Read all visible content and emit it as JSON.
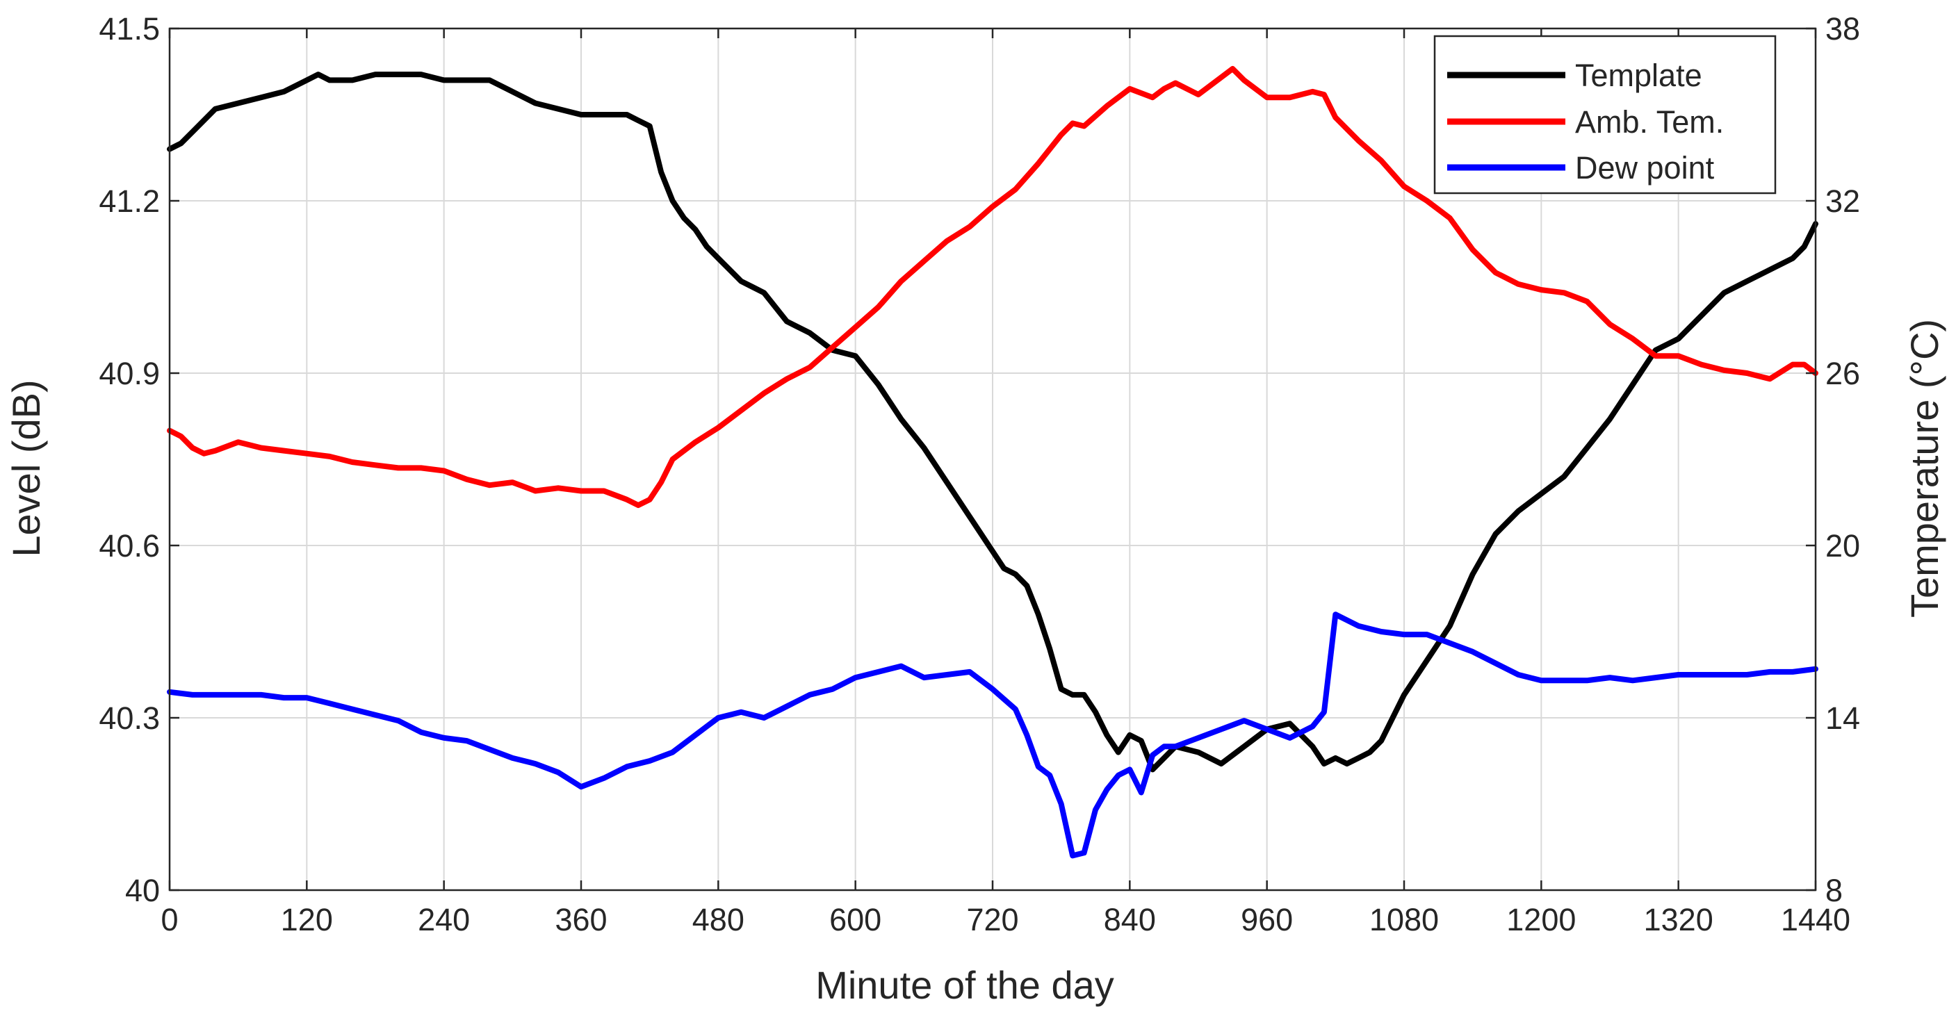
{
  "chart_data": {
    "type": "line",
    "title": "",
    "xlabel": "Minute of the day",
    "ylabel_left": "Level (dB)",
    "ylabel_right": "Temperature (°C)",
    "xlim": [
      0,
      1440
    ],
    "ylim_left": [
      40,
      41.5
    ],
    "ylim_right": [
      8,
      38
    ],
    "x_ticks": [
      0,
      120,
      240,
      360,
      480,
      600,
      720,
      840,
      960,
      1080,
      1200,
      1320,
      1440
    ],
    "x_tick_labels": [
      "0",
      "120",
      "240",
      "360",
      "480",
      "600",
      "720",
      "840",
      "960",
      "1080",
      "1200",
      "1320",
      "1440"
    ],
    "y_left_ticks": [
      40,
      40.3,
      40.6,
      40.9,
      41.2,
      41.5
    ],
    "y_left_tick_labels": [
      "40",
      "40.3",
      "40.6",
      "40.9",
      "41.2",
      "41.5"
    ],
    "y_right_ticks": [
      8,
      14,
      20,
      26,
      32,
      38
    ],
    "y_right_tick_labels": [
      "8",
      "14",
      "20",
      "26",
      "32",
      "38"
    ],
    "grid": true,
    "legend_position": "top-right",
    "series": [
      {
        "name": "Template",
        "axis": "left",
        "color": "#000000",
        "x": [
          0,
          10,
          20,
          30,
          40,
          60,
          80,
          100,
          120,
          130,
          140,
          160,
          180,
          200,
          220,
          240,
          260,
          280,
          300,
          320,
          340,
          360,
          380,
          400,
          410,
          420,
          430,
          440,
          450,
          460,
          470,
          480,
          490,
          500,
          510,
          520,
          540,
          560,
          580,
          600,
          620,
          640,
          660,
          680,
          700,
          720,
          730,
          740,
          750,
          760,
          770,
          780,
          790,
          800,
          810,
          820,
          830,
          840,
          850,
          860,
          880,
          900,
          920,
          940,
          960,
          980,
          1000,
          1010,
          1020,
          1030,
          1040,
          1050,
          1060,
          1080,
          1100,
          1120,
          1140,
          1160,
          1180,
          1200,
          1220,
          1240,
          1260,
          1280,
          1300,
          1320,
          1340,
          1360,
          1380,
          1400,
          1420,
          1430,
          1440
        ],
        "y": [
          41.29,
          41.3,
          41.32,
          41.34,
          41.36,
          41.37,
          41.38,
          41.39,
          41.41,
          41.42,
          41.41,
          41.41,
          41.42,
          41.42,
          41.42,
          41.41,
          41.41,
          41.41,
          41.39,
          41.37,
          41.36,
          41.35,
          41.35,
          41.35,
          41.34,
          41.33,
          41.25,
          41.2,
          41.17,
          41.15,
          41.12,
          41.1,
          41.08,
          41.06,
          41.05,
          41.04,
          40.99,
          40.97,
          40.94,
          40.93,
          40.88,
          40.82,
          40.77,
          40.71,
          40.65,
          40.59,
          40.56,
          40.55,
          40.53,
          40.48,
          40.42,
          40.35,
          40.34,
          40.34,
          40.31,
          40.27,
          40.24,
          40.27,
          40.26,
          40.21,
          40.25,
          40.24,
          40.22,
          40.25,
          40.28,
          40.29,
          40.25,
          40.22,
          40.23,
          40.22,
          40.23,
          40.24,
          40.26,
          40.34,
          40.4,
          40.46,
          40.55,
          40.62,
          40.66,
          40.69,
          40.72,
          40.77,
          40.82,
          40.88,
          40.94,
          40.96,
          41.0,
          41.04,
          41.06,
          41.08,
          41.1,
          41.12,
          41.16
        ]
      },
      {
        "name": "Amb. Tem.",
        "axis": "right",
        "color": "#ff0000",
        "x": [
          0,
          10,
          20,
          30,
          40,
          60,
          80,
          100,
          120,
          140,
          160,
          180,
          200,
          220,
          240,
          260,
          280,
          300,
          320,
          340,
          360,
          380,
          400,
          410,
          420,
          430,
          440,
          460,
          480,
          500,
          520,
          540,
          560,
          580,
          600,
          620,
          640,
          660,
          680,
          700,
          720,
          740,
          760,
          780,
          790,
          800,
          820,
          840,
          860,
          870,
          880,
          900,
          920,
          930,
          940,
          960,
          980,
          1000,
          1010,
          1020,
          1040,
          1060,
          1080,
          1100,
          1120,
          1140,
          1160,
          1180,
          1200,
          1220,
          1240,
          1260,
          1280,
          1300,
          1320,
          1340,
          1360,
          1380,
          1400,
          1420,
          1430,
          1440
        ],
        "y": [
          24.0,
          23.8,
          23.4,
          23.2,
          23.3,
          23.6,
          23.4,
          23.3,
          23.2,
          23.1,
          22.9,
          22.8,
          22.7,
          22.7,
          22.6,
          22.3,
          22.1,
          22.2,
          21.9,
          22.0,
          21.9,
          21.9,
          21.6,
          21.4,
          21.6,
          22.2,
          23.0,
          23.6,
          24.1,
          24.7,
          25.3,
          25.8,
          26.2,
          26.9,
          27.6,
          28.3,
          29.2,
          29.9,
          30.6,
          31.1,
          31.8,
          32.4,
          33.3,
          34.3,
          34.7,
          34.6,
          35.3,
          35.9,
          35.6,
          35.9,
          36.1,
          35.7,
          36.3,
          36.6,
          36.2,
          35.6,
          35.6,
          35.8,
          35.7,
          34.9,
          34.1,
          33.4,
          32.5,
          32.0,
          31.4,
          30.3,
          29.5,
          29.1,
          28.9,
          28.8,
          28.5,
          27.7,
          27.2,
          26.6,
          26.6,
          26.3,
          26.1,
          26.0,
          25.8,
          26.3,
          26.3,
          26.0
        ]
      },
      {
        "name": "Dew point",
        "axis": "right",
        "color": "#0000ff",
        "x": [
          0,
          20,
          40,
          60,
          80,
          100,
          120,
          140,
          160,
          180,
          200,
          220,
          240,
          260,
          280,
          300,
          320,
          340,
          360,
          380,
          400,
          420,
          440,
          460,
          480,
          500,
          520,
          540,
          560,
          580,
          600,
          620,
          640,
          660,
          680,
          700,
          720,
          740,
          750,
          760,
          770,
          780,
          790,
          800,
          810,
          820,
          830,
          840,
          850,
          860,
          870,
          880,
          900,
          920,
          940,
          960,
          980,
          1000,
          1010,
          1020,
          1040,
          1060,
          1080,
          1100,
          1120,
          1140,
          1160,
          1180,
          1200,
          1220,
          1240,
          1260,
          1280,
          1300,
          1320,
          1340,
          1360,
          1380,
          1400,
          1420,
          1440
        ],
        "y": [
          14.9,
          14.8,
          14.8,
          14.8,
          14.8,
          14.7,
          14.7,
          14.5,
          14.3,
          14.1,
          13.9,
          13.5,
          13.3,
          13.2,
          12.9,
          12.6,
          12.4,
          12.1,
          11.6,
          11.9,
          12.3,
          12.5,
          12.8,
          13.4,
          14.0,
          14.2,
          14.0,
          14.4,
          14.8,
          15.0,
          15.4,
          15.6,
          15.8,
          15.4,
          15.5,
          15.6,
          15.0,
          14.3,
          13.4,
          12.3,
          12.0,
          11.0,
          9.2,
          9.3,
          10.8,
          11.5,
          12.0,
          12.2,
          11.4,
          12.7,
          13.0,
          13.0,
          13.3,
          13.6,
          13.9,
          13.6,
          13.3,
          13.7,
          14.2,
          17.6,
          17.2,
          17.0,
          16.9,
          16.9,
          16.6,
          16.3,
          15.9,
          15.5,
          15.3,
          15.3,
          15.3,
          15.4,
          15.3,
          15.4,
          15.5,
          15.5,
          15.5,
          15.5,
          15.6,
          15.6,
          15.7
        ]
      }
    ]
  }
}
